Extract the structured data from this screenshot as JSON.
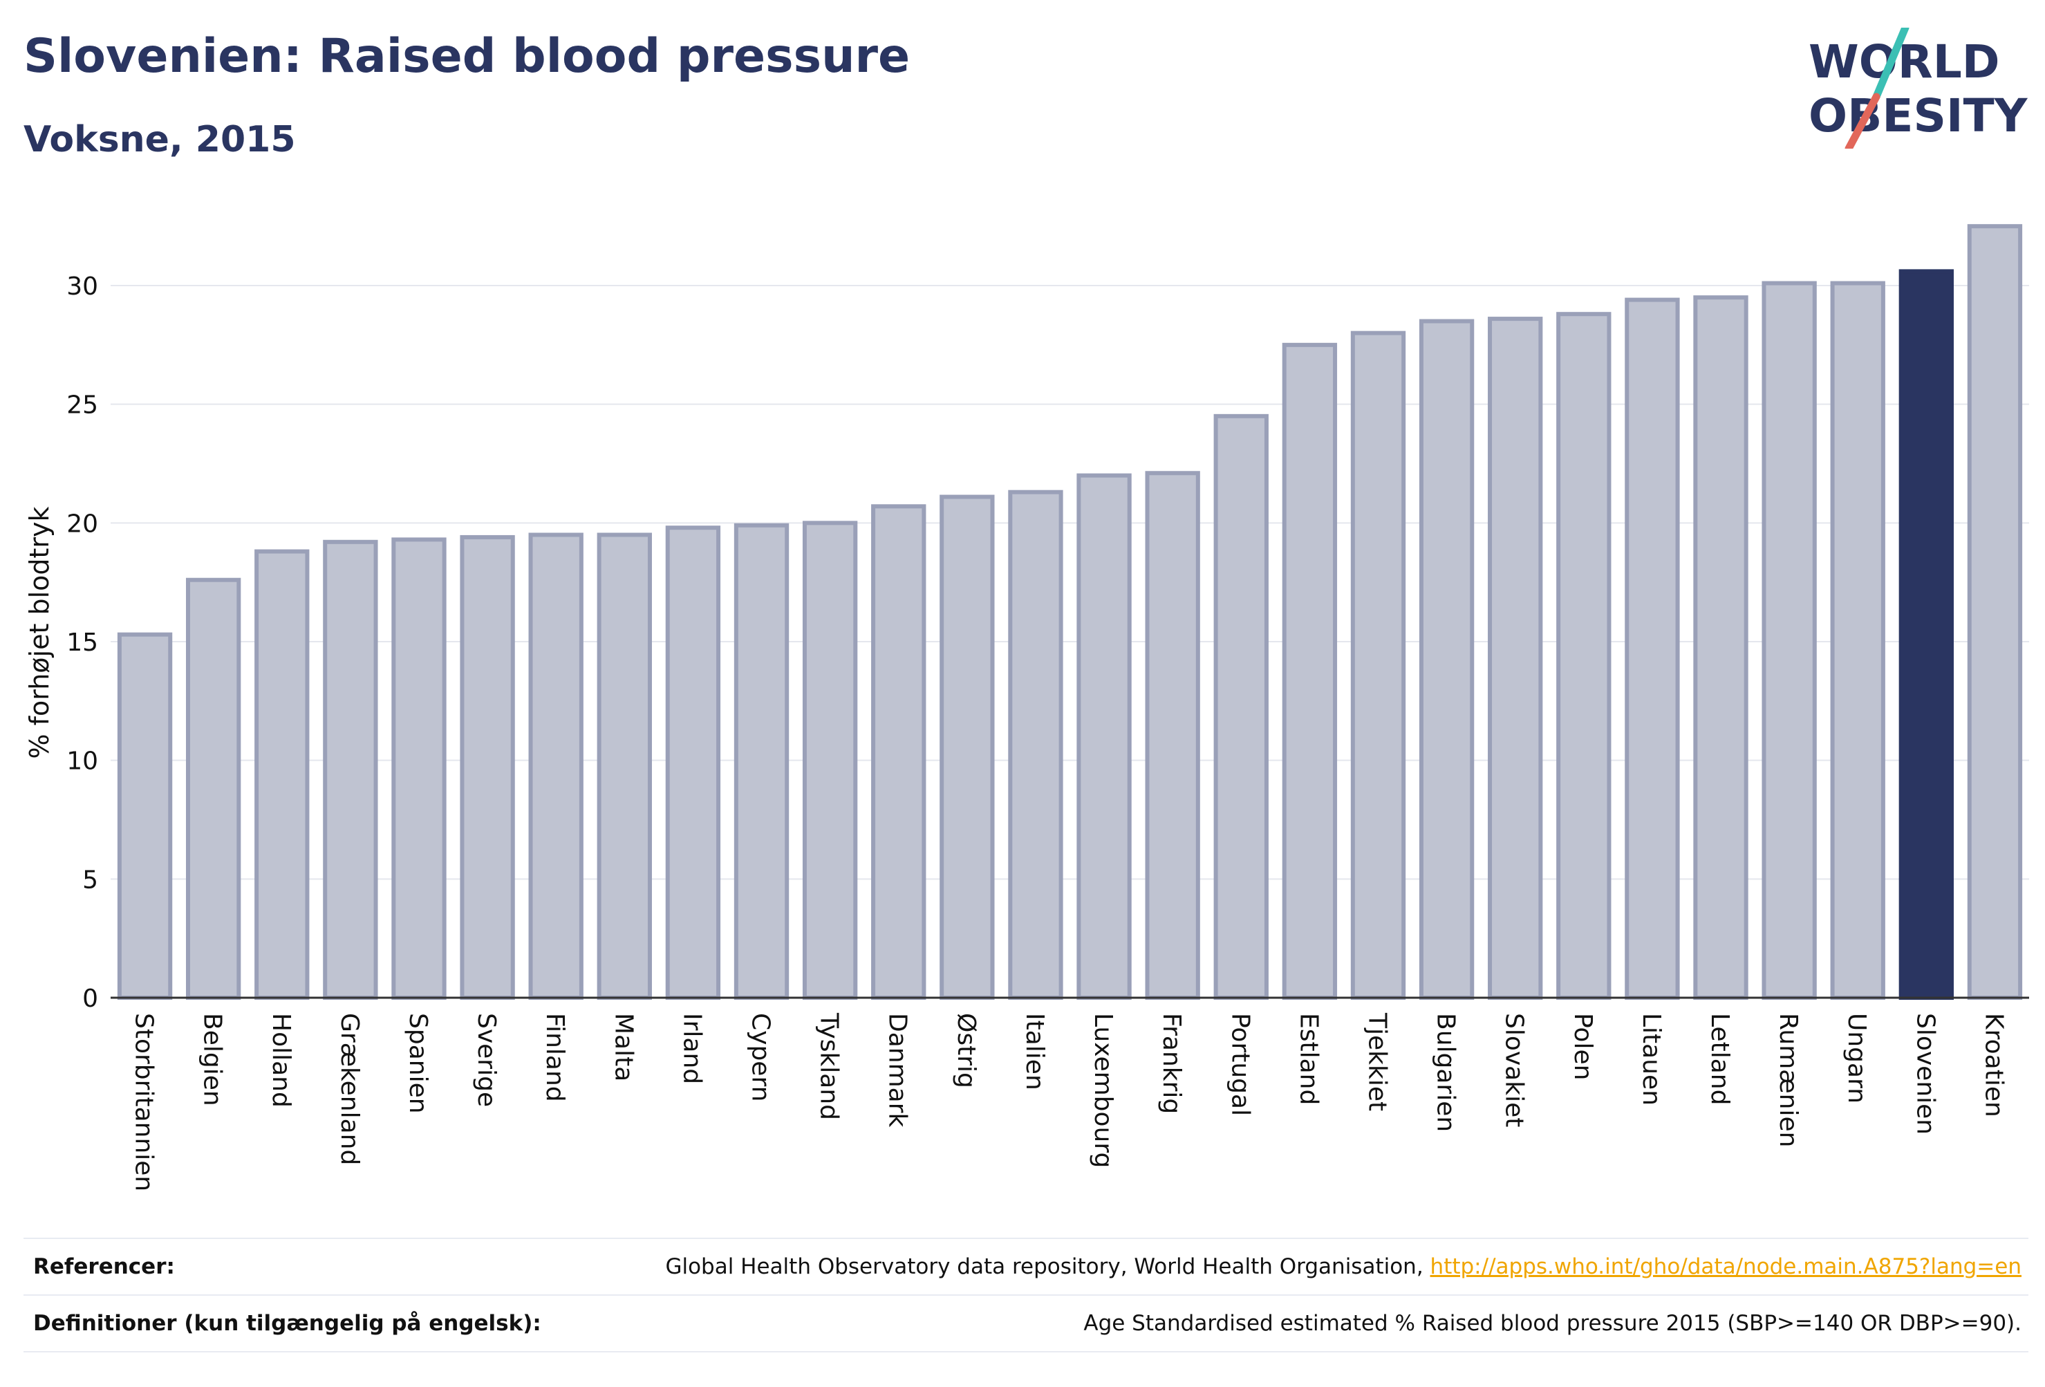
{
  "header": {
    "title": "Slovenien: Raised blood pressure",
    "subtitle": "Voksne, 2015"
  },
  "logo": {
    "line1": "WORLD",
    "line2": "OBESITY",
    "colors": {
      "text": "#2a3561",
      "slash_teal": "#3bbfb4",
      "slash_red": "#e2675a"
    }
  },
  "colors": {
    "bar_fill": "#bfc3d1",
    "bar_stroke": "#9aa0b8",
    "highlight": "#2a3561",
    "grid": "#e5e7ee",
    "axis": "#333333"
  },
  "chart_data": {
    "type": "bar",
    "title": "Slovenien: Raised blood pressure",
    "subtitle": "Voksne, 2015",
    "xlabel": "",
    "ylabel": "% forhøjet blodtryk",
    "ylim": [
      0,
      33
    ],
    "yticks": [
      0,
      5,
      10,
      15,
      20,
      25,
      30
    ],
    "grid": true,
    "highlight_category": "Slovenien",
    "categories": [
      "Storbritannien",
      "Belgien",
      "Holland",
      "Grækenland",
      "Spanien",
      "Sverige",
      "Finland",
      "Malta",
      "Irland",
      "Cypern",
      "Tyskland",
      "Danmark",
      "Østrig",
      "Italien",
      "Luxembourg",
      "Frankrig",
      "Portugal",
      "Estland",
      "Tjekkiet",
      "Bulgarien",
      "Slovakiet",
      "Polen",
      "Litauen",
      "Letland",
      "Rumænien",
      "Ungarn",
      "Slovenien",
      "Kroatien"
    ],
    "values": [
      15.3,
      17.6,
      18.8,
      19.2,
      19.3,
      19.4,
      19.5,
      19.5,
      19.8,
      19.9,
      20.0,
      20.7,
      21.1,
      21.3,
      22.0,
      22.1,
      24.5,
      27.5,
      28.0,
      28.5,
      28.6,
      28.8,
      29.4,
      29.5,
      30.1,
      30.1,
      30.6,
      32.5
    ]
  },
  "references": {
    "row1_label": "Referencer:",
    "row1_text": "Global Health Observatory data repository, World Health Organisation, ",
    "row1_link": "http://apps.who.int/gho/data/node.main.A875?lang=en",
    "row2_label": "Definitioner (kun tilgængelig på engelsk):",
    "row2_text": "Age Standardised estimated % Raised blood pressure 2015 (SBP>=140 OR DBP>=90)."
  }
}
